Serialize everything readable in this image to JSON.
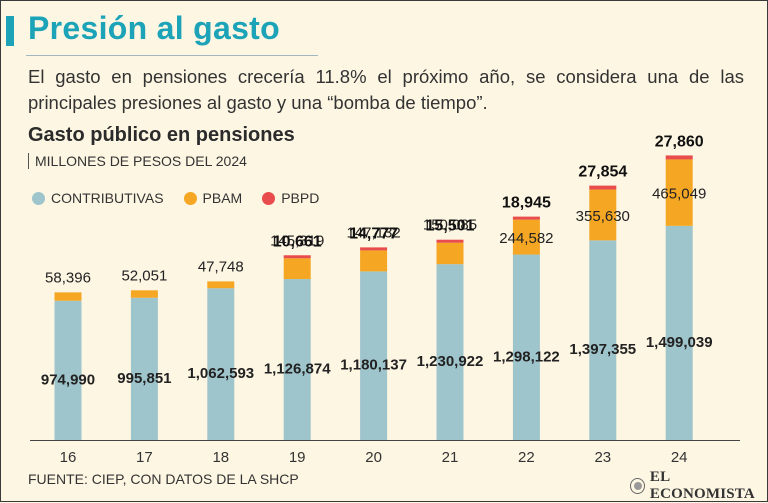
{
  "header": {
    "title": "Presión al gasto",
    "subtitle": "El gasto en pensiones crecería 11.8% el próximo año, se considera una de las principales presiones al gasto y una “bomba de tiempo”."
  },
  "chart_data": {
    "type": "bar",
    "title": "Gasto público en pensiones",
    "units": "MILLONES DE PESOS DEL 2024",
    "categories": [
      "16",
      "17",
      "18",
      "19",
      "20",
      "21",
      "22",
      "23",
      "24"
    ],
    "series": [
      {
        "name": "CONTRIBUTIVAS",
        "color": "#9fc5cc",
        "values": [
          974990,
          995851,
          1062593,
          1126874,
          1180137,
          1230922,
          1298122,
          1397355,
          1499039
        ],
        "labels": [
          "974,990",
          "995,851",
          "1,062,593",
          "1,126,874",
          "1,180,137",
          "1,230,922",
          "1,298,122",
          "1,397,355",
          "1,499,039"
        ]
      },
      {
        "name": "PBAM",
        "color": "#f5a623",
        "values": [
          58396,
          52051,
          47748,
          145319,
          147132,
          150085,
          244582,
          355630,
          465049
        ],
        "labels": [
          "58,396",
          "52,051",
          "47,748",
          "145,319",
          "147,132",
          "150,085",
          "244,582",
          "355,630",
          "465,049"
        ]
      },
      {
        "name": "PBPD",
        "color": "#e84c4c",
        "values": [
          null,
          null,
          null,
          10661,
          14777,
          15501,
          18945,
          27854,
          27860
        ],
        "labels": [
          "",
          "",
          "",
          "10,661",
          "14,777",
          "15,501",
          "18,945",
          "27,854",
          "27,860"
        ]
      }
    ],
    "ylim": [
      0,
      2100000
    ],
    "grid": false,
    "legend": "top-left"
  },
  "footer": {
    "source": "FUENTE: CIEP, CON DATOS DE LA SHCP",
    "brand": "EL ECONOMISTA"
  }
}
